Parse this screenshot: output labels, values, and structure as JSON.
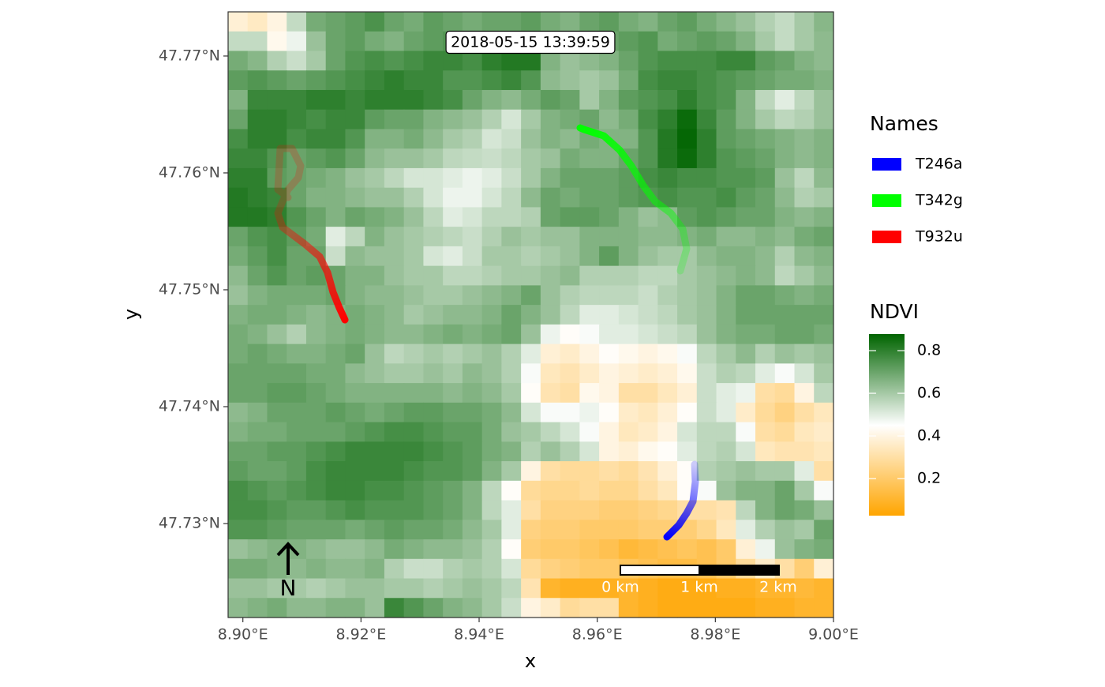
{
  "chart_data": {
    "type": "map",
    "title": "2018-05-15 13:39:59",
    "x_label": "x",
    "y_label": "y",
    "xlim": [
      8.8975,
      9.0
    ],
    "ylim": [
      47.72196,
      47.77378
    ],
    "xticks": [
      {
        "value": 8.9,
        "label": "8.90°E"
      },
      {
        "value": 8.92,
        "label": "8.92°E"
      },
      {
        "value": 8.94,
        "label": "8.94°E"
      },
      {
        "value": 8.96,
        "label": "8.96°E"
      },
      {
        "value": 8.98,
        "label": "8.98°E"
      },
      {
        "value": 9.0,
        "label": "9.00°E"
      }
    ],
    "yticks": [
      {
        "value": 47.73,
        "label": "47.73°N"
      },
      {
        "value": 47.74,
        "label": "47.74°N"
      },
      {
        "value": 47.75,
        "label": "47.75°N"
      },
      {
        "value": 47.76,
        "label": "47.76°N"
      },
      {
        "value": 47.77,
        "label": "47.77°N"
      }
    ],
    "legend_title": "Names",
    "series": [
      {
        "name": "T246a",
        "color": "#0000FF",
        "x": [
          8.97648,
          8.97661,
          8.97621,
          8.97514,
          8.9738,
          8.97247,
          8.9718
        ],
        "y": [
          47.73506,
          47.73358,
          47.73189,
          47.73088,
          47.72986,
          47.72919,
          47.72885
        ]
      },
      {
        "name": "T342g",
        "color": "#00FF00",
        "x": [
          8.97407,
          8.97514,
          8.97448,
          8.97247,
          8.9698,
          8.96779,
          8.96579,
          8.96378,
          8.96111,
          8.95777,
          8.9571
        ],
        "y": [
          47.75162,
          47.75351,
          47.7552,
          47.75655,
          47.75756,
          47.75892,
          47.7606,
          47.76196,
          47.76317,
          47.76371,
          47.76385
        ]
      },
      {
        "name": "T932u",
        "color": "#FF0000",
        "x": [
          8.90766,
          8.90592,
          8.90632,
          8.90832,
          8.90979,
          8.90939,
          8.90766,
          8.90672,
          8.90592,
          8.90672,
          8.91033,
          8.913,
          8.91434,
          8.91527,
          8.91634,
          8.91728
        ],
        "y": [
          47.7579,
          47.75858,
          47.76209,
          47.76209,
          47.7606,
          47.75959,
          47.75858,
          47.75756,
          47.75655,
          47.75534,
          47.75398,
          47.75284,
          47.75148,
          47.74979,
          47.74845,
          47.74743
        ]
      }
    ],
    "raster": {
      "name": "NDVI",
      "lim": [
        0.026,
        0.878
      ],
      "midpoint": 0.45,
      "colors": [
        "#FFA500",
        "#FFFFFF",
        "#006400"
      ],
      "ticks": [
        0.2,
        0.4,
        0.6,
        0.8
      ],
      "values": [
        [
          0.38,
          0.35,
          0.4,
          0.55,
          0.68,
          0.7,
          0.72,
          0.75,
          0.7,
          0.68,
          0.72,
          0.7,
          0.68,
          0.7,
          0.7,
          0.72,
          0.68,
          0.66,
          0.7,
          0.72,
          0.68,
          0.66,
          0.7,
          0.72,
          0.68,
          0.65,
          0.62,
          0.58,
          0.55,
          0.6,
          0.65
        ],
        [
          0.55,
          0.55,
          0.42,
          0.48,
          0.62,
          0.7,
          0.72,
          0.68,
          0.66,
          0.7,
          0.72,
          0.74,
          0.7,
          0.72,
          0.7,
          0.68,
          0.65,
          0.62,
          0.64,
          0.7,
          0.72,
          0.74,
          0.68,
          0.7,
          0.72,
          0.7,
          0.66,
          0.6,
          0.55,
          0.6,
          0.64
        ],
        [
          0.68,
          0.65,
          0.58,
          0.54,
          0.6,
          0.7,
          0.74,
          0.76,
          0.74,
          0.76,
          0.78,
          0.78,
          0.76,
          0.8,
          0.82,
          0.82,
          0.66,
          0.62,
          0.64,
          0.66,
          0.7,
          0.74,
          0.76,
          0.76,
          0.76,
          0.78,
          0.78,
          0.72,
          0.7,
          0.66,
          0.64
        ],
        [
          0.72,
          0.74,
          0.72,
          0.7,
          0.72,
          0.74,
          0.76,
          0.78,
          0.8,
          0.78,
          0.78,
          0.74,
          0.74,
          0.76,
          0.78,
          0.74,
          0.64,
          0.62,
          0.6,
          0.62,
          0.68,
          0.76,
          0.78,
          0.78,
          0.76,
          0.74,
          0.72,
          0.7,
          0.68,
          0.68,
          0.66
        ],
        [
          0.66,
          0.78,
          0.78,
          0.78,
          0.8,
          0.8,
          0.78,
          0.8,
          0.8,
          0.8,
          0.78,
          0.76,
          0.7,
          0.66,
          0.64,
          0.68,
          0.72,
          0.7,
          0.6,
          0.66,
          0.72,
          0.74,
          0.76,
          0.8,
          0.76,
          0.74,
          0.66,
          0.56,
          0.5,
          0.56,
          0.62
        ],
        [
          0.7,
          0.8,
          0.8,
          0.78,
          0.76,
          0.78,
          0.78,
          0.72,
          0.7,
          0.7,
          0.66,
          0.64,
          0.62,
          0.58,
          0.52,
          0.6,
          0.66,
          0.68,
          0.7,
          0.64,
          0.68,
          0.76,
          0.8,
          0.86,
          0.78,
          0.72,
          0.66,
          0.6,
          0.56,
          0.58,
          0.62
        ],
        [
          0.76,
          0.8,
          0.8,
          0.76,
          0.78,
          0.78,
          0.74,
          0.66,
          0.66,
          0.68,
          0.64,
          0.6,
          0.58,
          0.52,
          0.54,
          0.62,
          0.66,
          0.64,
          0.68,
          0.66,
          0.66,
          0.74,
          0.82,
          0.87,
          0.8,
          0.72,
          0.7,
          0.68,
          0.66,
          0.64,
          0.66
        ],
        [
          0.78,
          0.78,
          0.74,
          0.7,
          0.72,
          0.74,
          0.7,
          0.64,
          0.62,
          0.62,
          0.6,
          0.56,
          0.55,
          0.54,
          0.56,
          0.6,
          0.62,
          0.68,
          0.66,
          0.66,
          0.7,
          0.74,
          0.82,
          0.86,
          0.8,
          0.74,
          0.72,
          0.7,
          0.66,
          0.64,
          0.66
        ],
        [
          0.8,
          0.8,
          0.72,
          0.7,
          0.68,
          0.66,
          0.62,
          0.6,
          0.56,
          0.52,
          0.52,
          0.5,
          0.48,
          0.5,
          0.54,
          0.6,
          0.66,
          0.7,
          0.7,
          0.7,
          0.72,
          0.76,
          0.78,
          0.76,
          0.76,
          0.74,
          0.74,
          0.72,
          0.62,
          0.56,
          0.64
        ],
        [
          0.82,
          0.8,
          0.78,
          0.7,
          0.66,
          0.66,
          0.64,
          0.62,
          0.62,
          0.58,
          0.52,
          0.48,
          0.48,
          0.52,
          0.56,
          0.64,
          0.7,
          0.68,
          0.7,
          0.7,
          0.72,
          0.74,
          0.76,
          0.74,
          0.74,
          0.76,
          0.72,
          0.7,
          0.64,
          0.58,
          0.6
        ],
        [
          0.82,
          0.82,
          0.8,
          0.74,
          0.7,
          0.66,
          0.7,
          0.68,
          0.66,
          0.62,
          0.56,
          0.5,
          0.52,
          0.56,
          0.56,
          0.58,
          0.7,
          0.72,
          0.72,
          0.7,
          0.66,
          0.62,
          0.64,
          0.72,
          0.74,
          0.72,
          0.7,
          0.7,
          0.66,
          0.64,
          0.66
        ],
        [
          0.7,
          0.74,
          0.76,
          0.72,
          0.68,
          0.5,
          0.56,
          0.66,
          0.62,
          0.6,
          0.58,
          0.56,
          0.54,
          0.58,
          0.62,
          0.6,
          0.62,
          0.62,
          0.66,
          0.66,
          0.66,
          0.64,
          0.64,
          0.66,
          0.68,
          0.64,
          0.64,
          0.66,
          0.64,
          0.68,
          0.7
        ],
        [
          0.68,
          0.72,
          0.76,
          0.7,
          0.7,
          0.54,
          0.64,
          0.62,
          0.62,
          0.6,
          0.52,
          0.5,
          0.54,
          0.6,
          0.6,
          0.58,
          0.6,
          0.62,
          0.66,
          0.72,
          0.66,
          0.62,
          0.6,
          0.6,
          0.64,
          0.66,
          0.66,
          0.64,
          0.58,
          0.64,
          0.66
        ],
        [
          0.64,
          0.7,
          0.74,
          0.7,
          0.72,
          0.7,
          0.66,
          0.66,
          0.62,
          0.6,
          0.6,
          0.56,
          0.56,
          0.58,
          0.6,
          0.6,
          0.62,
          0.64,
          0.58,
          0.58,
          0.58,
          0.56,
          0.56,
          0.6,
          0.62,
          0.64,
          0.66,
          0.64,
          0.56,
          0.6,
          0.64
        ],
        [
          0.62,
          0.66,
          0.68,
          0.68,
          0.68,
          0.7,
          0.66,
          0.64,
          0.64,
          0.62,
          0.6,
          0.6,
          0.62,
          0.64,
          0.66,
          0.7,
          0.62,
          0.58,
          0.56,
          0.56,
          0.56,
          0.54,
          0.58,
          0.6,
          0.62,
          0.66,
          0.7,
          0.7,
          0.68,
          0.66,
          0.68
        ],
        [
          0.66,
          0.68,
          0.68,
          0.66,
          0.64,
          0.66,
          0.68,
          0.66,
          0.64,
          0.6,
          0.62,
          0.64,
          0.64,
          0.66,
          0.7,
          0.66,
          0.62,
          0.56,
          0.5,
          0.5,
          0.52,
          0.54,
          0.56,
          0.6,
          0.62,
          0.66,
          0.7,
          0.7,
          0.7,
          0.7,
          0.7
        ],
        [
          0.68,
          0.66,
          0.62,
          0.58,
          0.64,
          0.66,
          0.68,
          0.66,
          0.64,
          0.64,
          0.66,
          0.68,
          0.66,
          0.68,
          0.7,
          0.62,
          0.48,
          0.44,
          0.46,
          0.5,
          0.5,
          0.52,
          0.54,
          0.56,
          0.62,
          0.66,
          0.68,
          0.68,
          0.7,
          0.7,
          0.68
        ],
        [
          0.68,
          0.7,
          0.68,
          0.66,
          0.66,
          0.68,
          0.7,
          0.62,
          0.56,
          0.58,
          0.6,
          0.58,
          0.6,
          0.62,
          0.58,
          0.5,
          0.38,
          0.36,
          0.4,
          0.44,
          0.42,
          0.4,
          0.42,
          0.46,
          0.56,
          0.6,
          0.64,
          0.58,
          0.62,
          0.6,
          0.62
        ],
        [
          0.7,
          0.7,
          0.7,
          0.7,
          0.68,
          0.68,
          0.64,
          0.62,
          0.6,
          0.6,
          0.62,
          0.6,
          0.64,
          0.62,
          0.58,
          0.46,
          0.34,
          0.32,
          0.36,
          0.4,
          0.38,
          0.36,
          0.38,
          0.42,
          0.54,
          0.58,
          0.56,
          0.5,
          0.46,
          0.52,
          0.6
        ],
        [
          0.7,
          0.7,
          0.72,
          0.72,
          0.7,
          0.68,
          0.66,
          0.66,
          0.66,
          0.66,
          0.66,
          0.64,
          0.66,
          0.64,
          0.6,
          0.44,
          0.32,
          0.3,
          0.42,
          0.4,
          0.3,
          0.3,
          0.34,
          0.38,
          0.54,
          0.5,
          0.48,
          0.3,
          0.28,
          0.4,
          0.56
        ],
        [
          0.64,
          0.66,
          0.7,
          0.7,
          0.7,
          0.72,
          0.7,
          0.68,
          0.7,
          0.72,
          0.72,
          0.7,
          0.7,
          0.68,
          0.64,
          0.52,
          0.46,
          0.46,
          0.48,
          0.44,
          0.36,
          0.34,
          0.38,
          0.44,
          0.54,
          0.5,
          0.36,
          0.28,
          0.24,
          0.3,
          0.34
        ],
        [
          0.66,
          0.68,
          0.68,
          0.7,
          0.7,
          0.7,
          0.72,
          0.74,
          0.76,
          0.76,
          0.74,
          0.72,
          0.72,
          0.68,
          0.62,
          0.6,
          0.56,
          0.52,
          0.46,
          0.4,
          0.34,
          0.36,
          0.4,
          0.52,
          0.56,
          0.56,
          0.46,
          0.3,
          0.28,
          0.34,
          0.36
        ],
        [
          0.7,
          0.7,
          0.72,
          0.72,
          0.74,
          0.76,
          0.78,
          0.78,
          0.78,
          0.78,
          0.76,
          0.74,
          0.72,
          0.68,
          0.66,
          0.58,
          0.62,
          0.58,
          0.52,
          0.4,
          0.38,
          0.42,
          0.44,
          0.5,
          0.56,
          0.58,
          0.52,
          0.34,
          0.32,
          0.32,
          0.34
        ],
        [
          0.72,
          0.7,
          0.7,
          0.72,
          0.76,
          0.78,
          0.78,
          0.78,
          0.78,
          0.76,
          0.74,
          0.74,
          0.72,
          0.66,
          0.6,
          0.4,
          0.3,
          0.28,
          0.28,
          0.3,
          0.28,
          0.32,
          0.38,
          0.44,
          0.58,
          0.6,
          0.62,
          0.6,
          0.6,
          0.5,
          0.3
        ],
        [
          0.76,
          0.74,
          0.72,
          0.74,
          0.76,
          0.78,
          0.78,
          0.76,
          0.76,
          0.74,
          0.72,
          0.7,
          0.66,
          0.56,
          0.44,
          0.28,
          0.26,
          0.26,
          0.28,
          0.26,
          0.26,
          0.3,
          0.34,
          0.44,
          0.46,
          0.62,
          0.66,
          0.66,
          0.7,
          0.6,
          0.46
        ],
        [
          0.76,
          0.76,
          0.74,
          0.72,
          0.72,
          0.74,
          0.76,
          0.74,
          0.74,
          0.74,
          0.72,
          0.7,
          0.66,
          0.56,
          0.5,
          0.3,
          0.24,
          0.24,
          0.24,
          0.22,
          0.22,
          0.24,
          0.26,
          0.3,
          0.3,
          0.32,
          0.56,
          0.66,
          0.7,
          0.68,
          0.62
        ],
        [
          0.74,
          0.74,
          0.72,
          0.7,
          0.7,
          0.7,
          0.68,
          0.7,
          0.72,
          0.7,
          0.7,
          0.68,
          0.64,
          0.6,
          0.5,
          0.24,
          0.22,
          0.22,
          0.2,
          0.2,
          0.2,
          0.22,
          0.22,
          0.22,
          0.26,
          0.34,
          0.5,
          0.58,
          0.62,
          0.6,
          0.7
        ],
        [
          0.62,
          0.64,
          0.66,
          0.66,
          0.64,
          0.62,
          0.62,
          0.64,
          0.68,
          0.66,
          0.64,
          0.64,
          0.62,
          0.58,
          0.44,
          0.22,
          0.2,
          0.2,
          0.18,
          0.16,
          0.12,
          0.14,
          0.16,
          0.18,
          0.16,
          0.2,
          0.38,
          0.48,
          0.62,
          0.66,
          0.68
        ],
        [
          0.68,
          0.68,
          0.66,
          0.64,
          0.66,
          0.64,
          0.64,
          0.66,
          0.58,
          0.54,
          0.54,
          0.58,
          0.6,
          0.58,
          0.52,
          0.28,
          0.24,
          0.22,
          0.2,
          0.2,
          0.18,
          0.16,
          0.14,
          0.14,
          0.16,
          0.2,
          0.28,
          0.36,
          0.3,
          0.22,
          0.38
        ],
        [
          0.62,
          0.62,
          0.6,
          0.6,
          0.58,
          0.6,
          0.62,
          0.62,
          0.6,
          0.6,
          0.58,
          0.6,
          0.62,
          0.6,
          0.56,
          0.32,
          0.1,
          0.08,
          0.08,
          0.08,
          0.1,
          0.08,
          0.06,
          0.06,
          0.06,
          0.08,
          0.08,
          0.1,
          0.1,
          0.12,
          0.1
        ],
        [
          0.64,
          0.66,
          0.68,
          0.64,
          0.64,
          0.66,
          0.66,
          0.62,
          0.78,
          0.74,
          0.7,
          0.66,
          0.64,
          0.6,
          0.54,
          0.4,
          0.36,
          0.28,
          0.3,
          0.3,
          0.1,
          0.08,
          0.06,
          0.06,
          0.06,
          0.06,
          0.06,
          0.08,
          0.08,
          0.1,
          0.1
        ]
      ]
    },
    "scale_bar": {
      "labels": [
        "0 km",
        "1 km",
        "2 km"
      ]
    },
    "north_label": "N"
  }
}
